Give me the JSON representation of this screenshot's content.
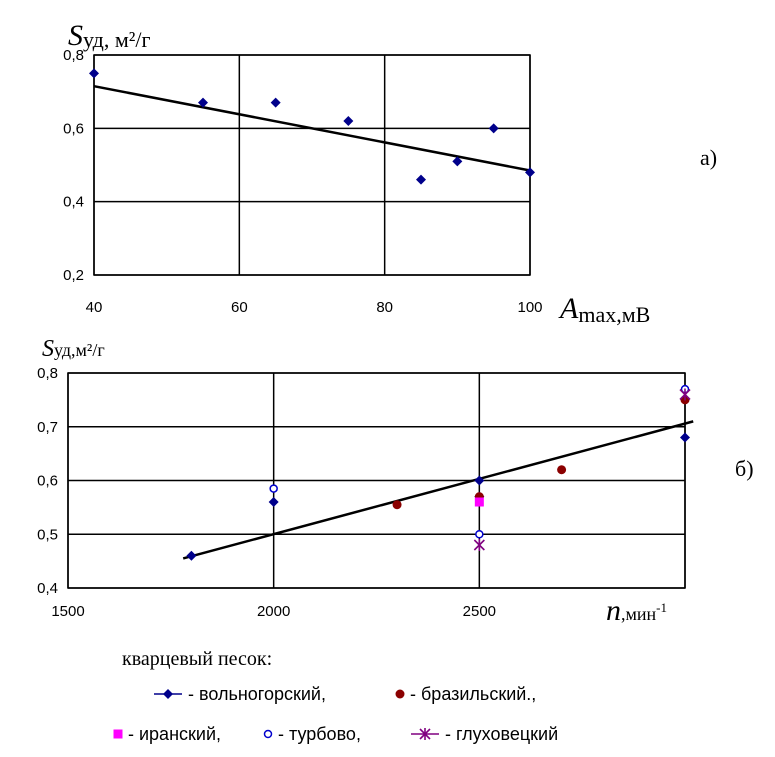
{
  "chart_data": [
    {
      "type": "scatter",
      "panel_label": "а)",
      "ylabel": {
        "main": "S",
        "sub": "уд",
        "unit": ", м²/г"
      },
      "xlabel": {
        "main": "A",
        "sub": "max",
        "unit": ",мВ"
      },
      "xlim": [
        40,
        100
      ],
      "ylim": [
        0.2,
        0.8
      ],
      "x_ticks": [
        "40",
        "60",
        "80",
        "100"
      ],
      "y_ticks": [
        "0,2",
        "0,4",
        "0,6",
        "0,8"
      ],
      "grid": true,
      "series": [
        {
          "marker": "diamond",
          "color": "#00008b",
          "points": [
            [
              40,
              0.75
            ],
            [
              55,
              0.67
            ],
            [
              65,
              0.67
            ],
            [
              75,
              0.62
            ],
            [
              85,
              0.46
            ],
            [
              90,
              0.51
            ],
            [
              95,
              0.6
            ],
            [
              100,
              0.48
            ]
          ]
        }
      ],
      "trendline": {
        "from": [
          40,
          0.715
        ],
        "to": [
          100,
          0.485
        ]
      }
    },
    {
      "type": "scatter",
      "panel_label": "б)",
      "ylabel": {
        "main": "S",
        "sub": "уд",
        "unit": ",м²/г"
      },
      "xlabel": {
        "main": "n",
        "unit": ",мин",
        "sup": "-1"
      },
      "xlim": [
        1500,
        3000
      ],
      "ylim": [
        0.4,
        0.8
      ],
      "x_ticks": [
        "1500",
        "2000",
        "2500",
        "3000"
      ],
      "x_ticks_shown": [
        "1500",
        "2000",
        "2500"
      ],
      "y_ticks": [
        "0,4",
        "0,5",
        "0,6",
        "0,7",
        "0,8"
      ],
      "grid": true,
      "series": [
        {
          "name": "вольногорский,",
          "marker": "diamond",
          "color": "#00008b",
          "points": [
            [
              1800,
              0.46
            ],
            [
              2000,
              0.56
            ],
            [
              2500,
              0.6
            ],
            [
              2500,
              0.57
            ],
            [
              3000,
              0.68
            ]
          ]
        },
        {
          "name": "бразильский.,",
          "marker": "circle",
          "color": "#8b0000",
          "points": [
            [
              2300,
              0.555
            ],
            [
              2500,
              0.57
            ],
            [
              2700,
              0.62
            ],
            [
              3000,
              0.75
            ]
          ]
        },
        {
          "name": "иранский,",
          "marker": "square",
          "color": "#ff00ff",
          "points": [
            [
              2500,
              0.56
            ]
          ]
        },
        {
          "name": "турбово,",
          "marker": "open-circle",
          "color": "#0000cd",
          "points": [
            [
              2000,
              0.585
            ],
            [
              2500,
              0.5
            ],
            [
              3000,
              0.77
            ]
          ]
        },
        {
          "name": "глуховецкий",
          "marker": "asterisk",
          "color": "#800080",
          "points": [
            [
              2500,
              0.48
            ],
            [
              3000,
              0.76
            ]
          ]
        }
      ],
      "trendline": {
        "from": [
          1780,
          0.455
        ],
        "to": [
          3020,
          0.71
        ]
      }
    }
  ],
  "legend": {
    "title": "кварцевый песок:",
    "dash": "-"
  }
}
